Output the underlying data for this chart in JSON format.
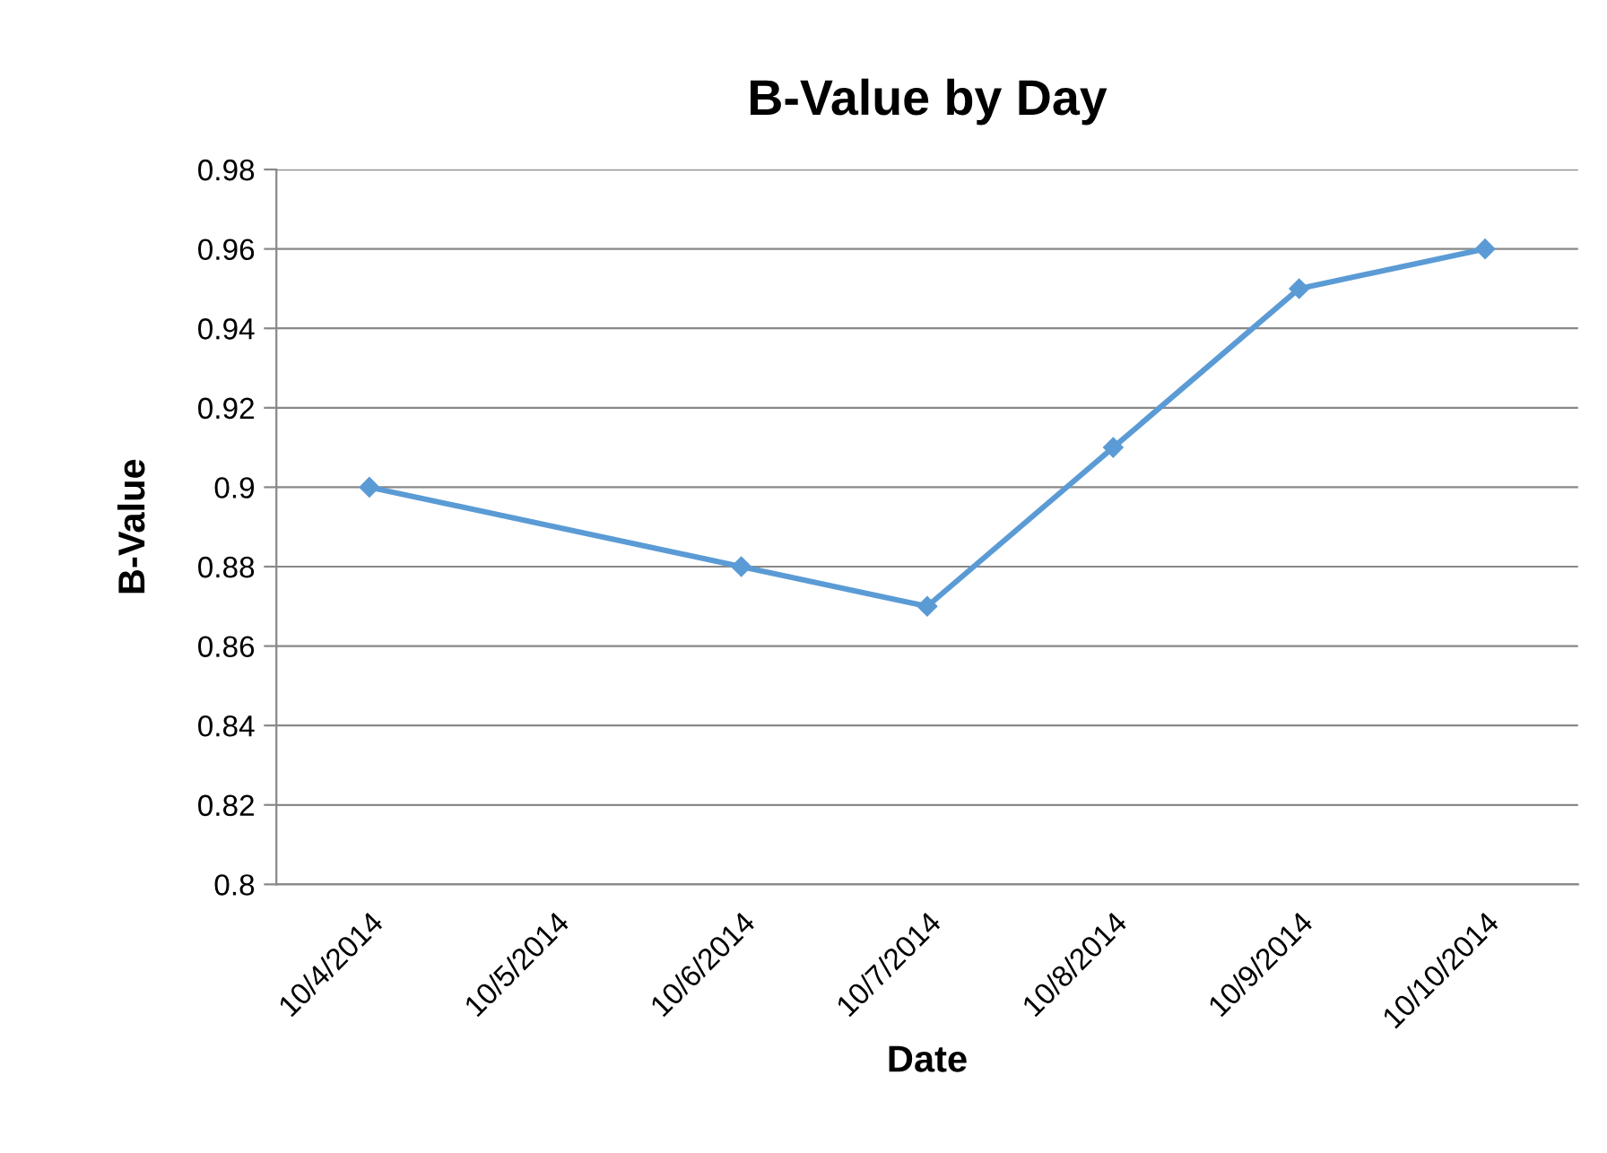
{
  "chart_data": {
    "type": "line",
    "title": "B-Value by Day",
    "xlabel": "Date",
    "ylabel": "B-Value",
    "x": [
      "2014-10-04",
      "2014-10-06",
      "2014-10-07",
      "2014-10-08",
      "2014-10-09",
      "2014-10-10"
    ],
    "series": [
      {
        "color": "#5b9bd5",
        "values": [
          0.9,
          0.88,
          0.87,
          0.91,
          0.95,
          0.96
        ]
      }
    ],
    "xlim": [
      "2014-10-03T12:00",
      "2014-10-10T12:00"
    ],
    "xticks": [
      {
        "value": "2014-10-04",
        "label": "10/4/2014"
      },
      {
        "value": "2014-10-05",
        "label": "10/5/2014"
      },
      {
        "value": "2014-10-06",
        "label": "10/6/2014"
      },
      {
        "value": "2014-10-07",
        "label": "10/7/2014"
      },
      {
        "value": "2014-10-08",
        "label": "10/8/2014"
      },
      {
        "value": "2014-10-09",
        "label": "10/9/2014"
      },
      {
        "value": "2014-10-10",
        "label": "10/10/2014"
      }
    ],
    "ylim": [
      0.8,
      0.98
    ],
    "yticks": [
      0.8,
      0.82,
      0.84,
      0.86,
      0.88,
      0.9,
      0.92,
      0.94,
      0.96,
      0.98
    ],
    "grid": "y",
    "marker": "diamond",
    "line_style": "solid"
  }
}
